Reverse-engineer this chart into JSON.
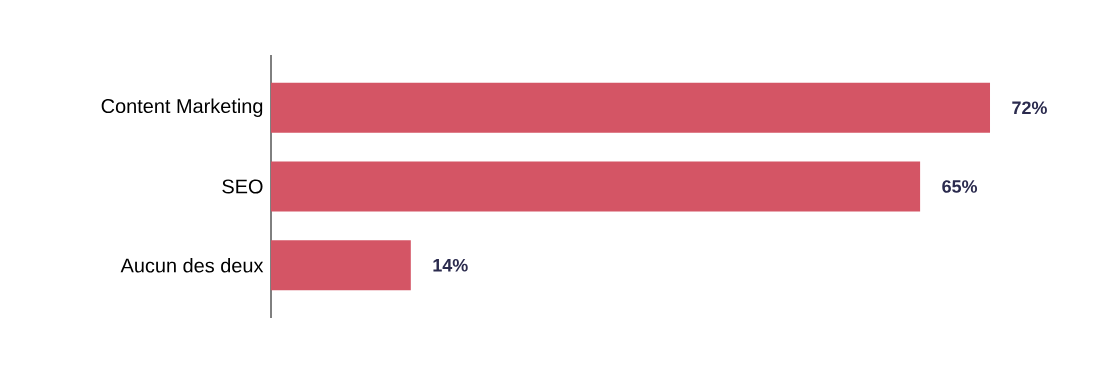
{
  "chart_data": {
    "type": "bar",
    "orientation": "horizontal",
    "categories": [
      "Content Marketing",
      "SEO",
      "Aucun des deux"
    ],
    "values": [
      72,
      65,
      14
    ],
    "value_labels": [
      "72%",
      "65%",
      "14%"
    ],
    "color": "#d45565"
  }
}
